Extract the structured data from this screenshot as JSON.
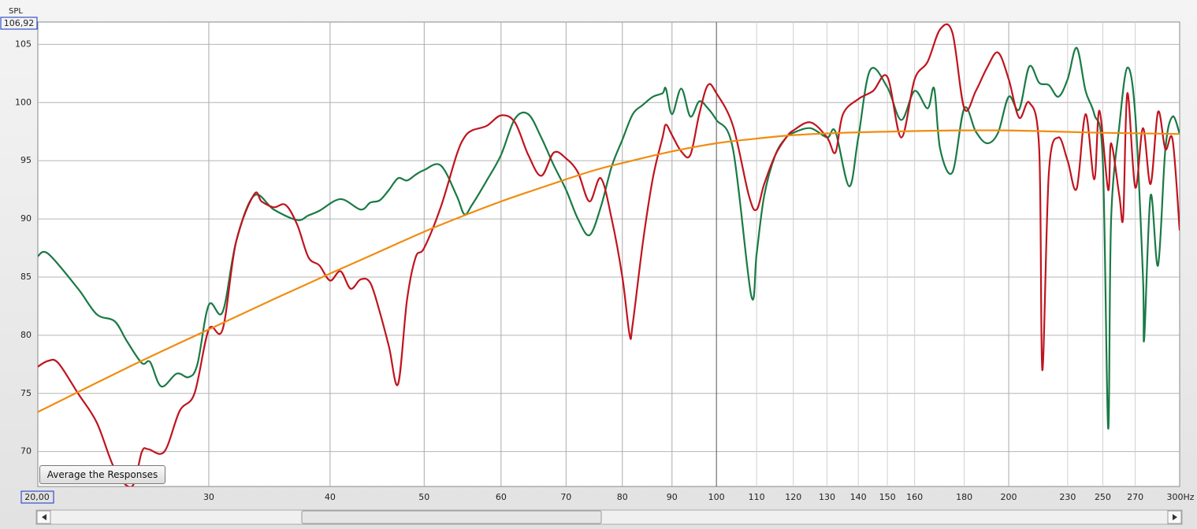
{
  "chart_data": {
    "type": "line",
    "y_label": "SPL",
    "button": "Average the Responses",
    "xscale": "log",
    "grid": true,
    "xlim": [
      20,
      300
    ],
    "ylim": [
      67,
      106.92
    ],
    "xticks": [
      {
        "value": 20,
        "label": "20,00"
      },
      30,
      40,
      50,
      60,
      70,
      80,
      90,
      100,
      110,
      120,
      130,
      140,
      150,
      160,
      180,
      200,
      230,
      250,
      270,
      {
        "value": 300,
        "label": "300Hz"
      }
    ],
    "xticks_minor": [
      110,
      120,
      130,
      140,
      150,
      160,
      180,
      230,
      250,
      270
    ],
    "yticks": [
      70,
      75,
      80,
      85,
      90,
      95,
      100,
      105,
      {
        "value": 106.92,
        "label": "106,92"
      }
    ],
    "series": [
      {
        "color": "#1a7a45",
        "x": [
          20,
          20.5,
          22,
          23,
          24,
          24.7,
          25.6,
          26.1,
          26.8,
          27.8,
          28.6,
          29.2,
          30,
          31,
          32,
          33.4,
          35,
          37,
          38,
          39,
          41,
          43,
          44,
          45,
          46,
          47,
          48,
          49,
          50,
          52,
          54,
          55,
          56,
          58,
          60,
          62,
          64,
          66,
          68,
          70,
          72,
          74,
          76,
          78,
          80,
          82,
          84,
          86,
          88,
          88.7,
          90,
          92,
          94,
          96,
          98,
          100,
          104,
          108.6,
          110,
          112,
          115,
          118,
          120,
          125,
          130,
          132.6,
          137,
          140,
          144,
          150,
          155,
          160,
          165,
          167.6,
          170,
          175,
          180,
          185,
          190,
          195,
          200,
          205,
          210,
          215,
          220,
          225,
          230,
          235,
          240,
          245,
          250,
          253.2,
          255,
          260,
          265,
          270,
          275,
          275.8,
          280,
          285,
          290,
          295,
          300
        ],
        "values": [
          86.8,
          87,
          84,
          81.8,
          81.2,
          79.5,
          77.6,
          77.7,
          75.6,
          76.7,
          76.4,
          77.5,
          82.6,
          82,
          88,
          92,
          90.8,
          89.9,
          90.3,
          90.7,
          91.7,
          90.8,
          91.4,
          91.6,
          92.5,
          93.5,
          93.3,
          93.8,
          94.2,
          94.6,
          92,
          90.4,
          91.2,
          93.3,
          95.5,
          98.6,
          99,
          97,
          94.6,
          92.5,
          90,
          88.6,
          91,
          94.5,
          96.8,
          99,
          99.8,
          100.5,
          100.8,
          101.2,
          99,
          101.2,
          98.8,
          100.1,
          99.5,
          98.5,
          96,
          83.4,
          87,
          92,
          95.5,
          97,
          97.4,
          97.8,
          97,
          97.5,
          92.8,
          97,
          102.8,
          101.3,
          98.5,
          101,
          99.5,
          101.2,
          96,
          94,
          99.5,
          97.5,
          96.5,
          97.4,
          100.5,
          99.4,
          103.1,
          101.7,
          101.5,
          100.5,
          102,
          104.7,
          101,
          99,
          95,
          72,
          90,
          98,
          103,
          99,
          85,
          79.7,
          92,
          86,
          96,
          98.8,
          97.3
        ]
      },
      {
        "color": "#c0141e",
        "x": [
          20,
          20.5,
          21,
          22,
          23,
          24,
          25,
          25.6,
          26,
          27,
          28,
          29,
          30,
          31,
          32,
          33.4,
          34,
          35,
          36,
          37,
          38,
          39,
          40,
          41,
          42,
          43,
          44,
          45,
          46,
          47,
          48,
          49,
          50,
          52,
          54,
          55,
          56,
          58,
          60,
          62,
          64,
          66,
          68,
          70,
          72,
          74,
          76,
          78,
          80,
          81.4,
          82,
          84,
          86,
          88,
          88.7,
          90,
          92,
          94,
          96,
          98,
          100,
          104,
          108,
          110,
          112,
          115,
          118,
          120,
          125,
          130,
          132.6,
          135,
          140,
          145,
          150,
          155,
          160,
          165,
          170,
          175,
          180,
          185,
          190,
          195,
          200,
          205,
          210,
          215,
          216.6,
          220,
          225,
          230,
          235,
          240,
          245,
          248,
          253.2,
          255,
          260,
          262.4,
          265,
          270,
          275,
          280,
          285,
          290,
          295,
          300
        ],
        "values": [
          77.3,
          77.8,
          77.6,
          75,
          72.5,
          68.5,
          67,
          70,
          70.2,
          70,
          73.5,
          75,
          80.5,
          80.5,
          88,
          92.1,
          91.5,
          91,
          91.2,
          89.5,
          86.7,
          86,
          84.7,
          85.5,
          84,
          84.8,
          84.5,
          82,
          79,
          75.8,
          83,
          86.7,
          87.5,
          91,
          95.5,
          97,
          97.6,
          98,
          98.9,
          98.3,
          95.5,
          93.7,
          95.7,
          95.2,
          94,
          91.5,
          93.5,
          90,
          85,
          80,
          81,
          88,
          93.5,
          97,
          98.1,
          97.2,
          95.8,
          95.5,
          99,
          101.5,
          100.8,
          98,
          92,
          90.8,
          93,
          95.5,
          97,
          97.6,
          98.3,
          97,
          95.7,
          99,
          100.3,
          101,
          102.2,
          97,
          102,
          103.5,
          106.3,
          106,
          99.5,
          101,
          103,
          104.3,
          102,
          98.7,
          100,
          96,
          77,
          94,
          97,
          95,
          92.6,
          99,
          93.4,
          99.3,
          92.5,
          96.5,
          92,
          90.2,
          100.8,
          92.7,
          97.8,
          93,
          99.2,
          96,
          96.8,
          89
        ]
      },
      {
        "color": "#f08c10",
        "x": [
          20,
          25,
          30,
          35,
          40,
          45,
          50,
          55,
          60,
          65,
          70,
          75,
          80,
          90,
          100,
          110,
          120,
          135,
          150,
          175,
          200,
          225,
          250,
          275,
          300
        ],
        "values": [
          73.4,
          77.4,
          80.5,
          83.1,
          85.3,
          87.2,
          88.9,
          90.3,
          91.5,
          92.5,
          93.4,
          94.2,
          94.8,
          95.8,
          96.5,
          96.9,
          97.2,
          97.4,
          97.5,
          97.6,
          97.6,
          97.5,
          97.4,
          97.35,
          97.3
        ]
      }
    ]
  }
}
